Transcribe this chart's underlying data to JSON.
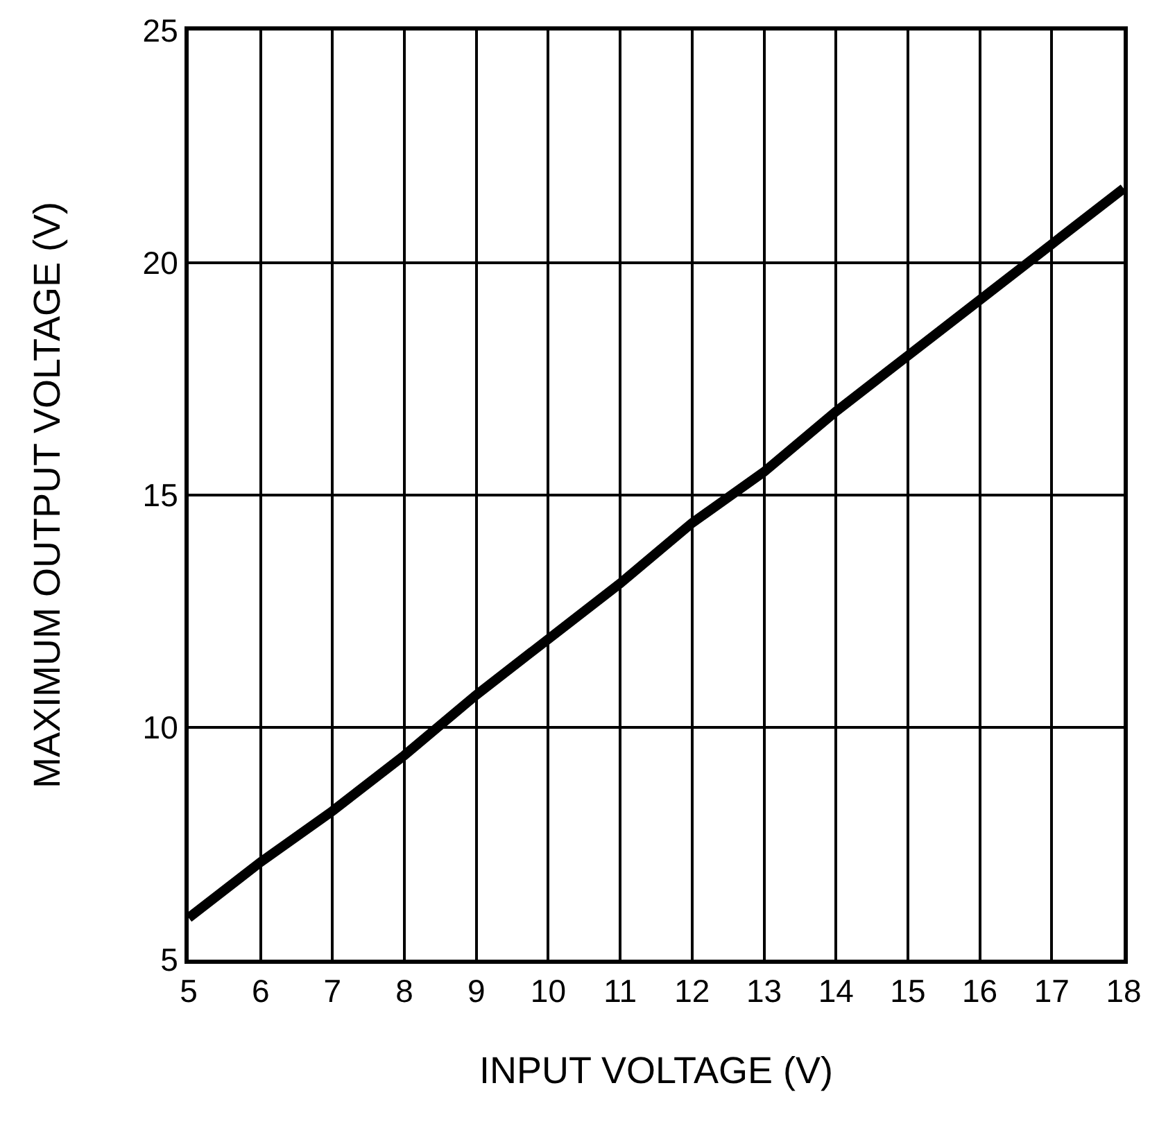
{
  "chart_data": {
    "type": "line",
    "xlabel": "INPUT VOLTAGE (V)",
    "ylabel": "MAXIMUM OUTPUT VOLTAGE (V)",
    "x": [
      5,
      6,
      7,
      8,
      9,
      10,
      11,
      12,
      13,
      14,
      15,
      16,
      17,
      18
    ],
    "series": [
      {
        "color": "#000000",
        "values": [
          5.9,
          7.1,
          8.2,
          9.4,
          10.7,
          11.9,
          13.1,
          14.4,
          15.5,
          16.8,
          18.0,
          19.2,
          20.4,
          21.6
        ]
      }
    ],
    "xlim": [
      5,
      18
    ],
    "xticks": [
      5,
      6,
      7,
      8,
      9,
      10,
      11,
      12,
      13,
      14,
      15,
      16,
      17,
      18
    ],
    "ylim": [
      5,
      25
    ],
    "yticks": [
      5,
      10,
      15,
      20,
      25
    ],
    "grid": true,
    "marker": "none",
    "line_style": "solid"
  }
}
